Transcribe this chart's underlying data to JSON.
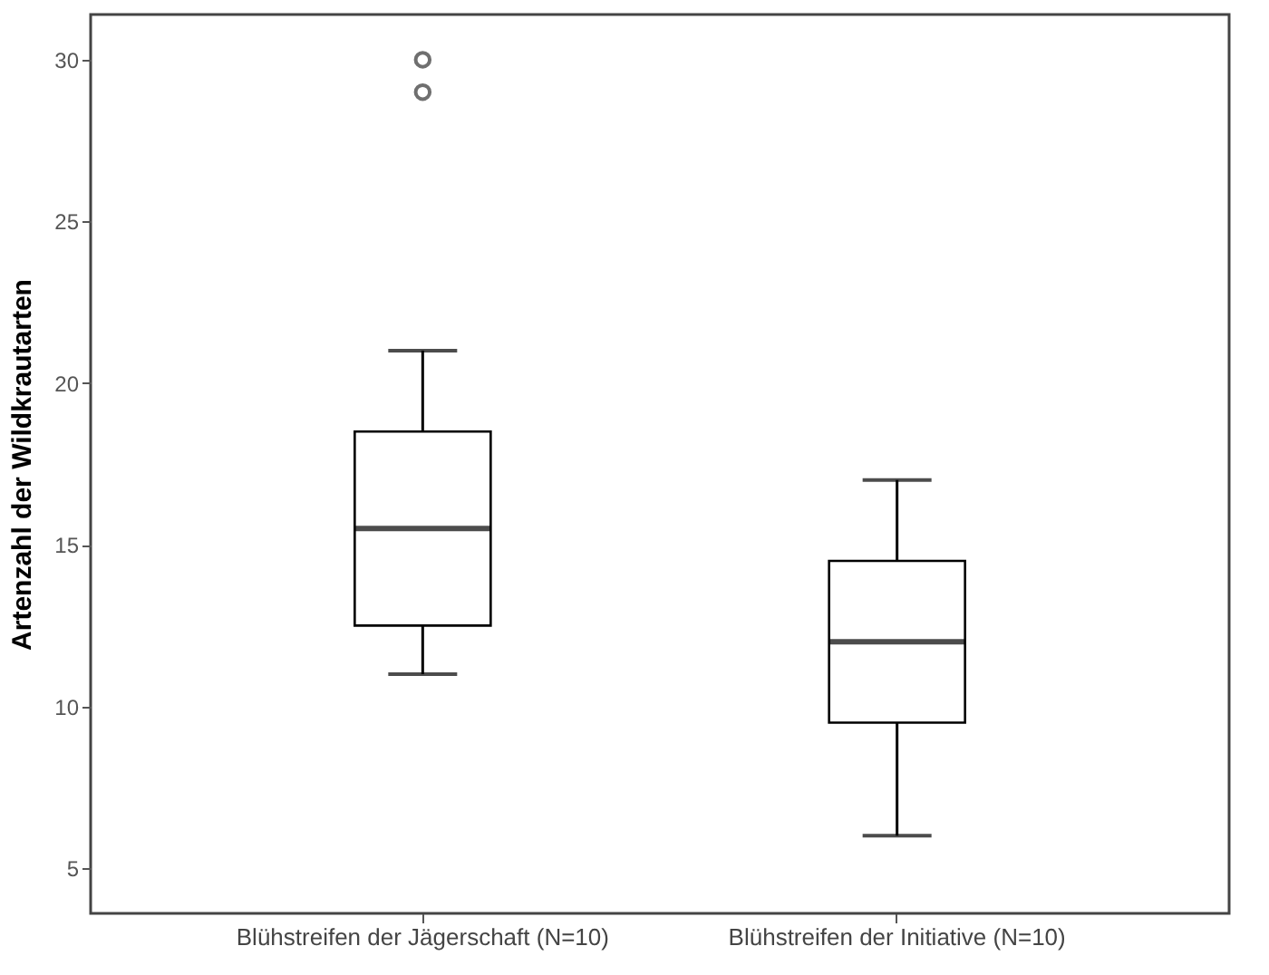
{
  "chart_data": {
    "type": "box",
    "ylabel": "Artenzahl der Wildkrautarten",
    "categories": [
      "Blühstreifen der Jägerschaft (N=10)",
      "Blühstreifen der Initiative (N=10)"
    ],
    "boxes": [
      {
        "low": 11,
        "q1": 12.5,
        "median": 15.5,
        "q3": 18.5,
        "high": 21,
        "outliers": [
          29,
          30
        ]
      },
      {
        "low": 6,
        "q1": 9.5,
        "median": 12,
        "q3": 14.5,
        "high": 17
      }
    ],
    "ylim": [
      3.6,
      31.4
    ],
    "yticks": [
      5,
      10,
      15,
      20,
      25,
      30
    ],
    "grid": false
  }
}
